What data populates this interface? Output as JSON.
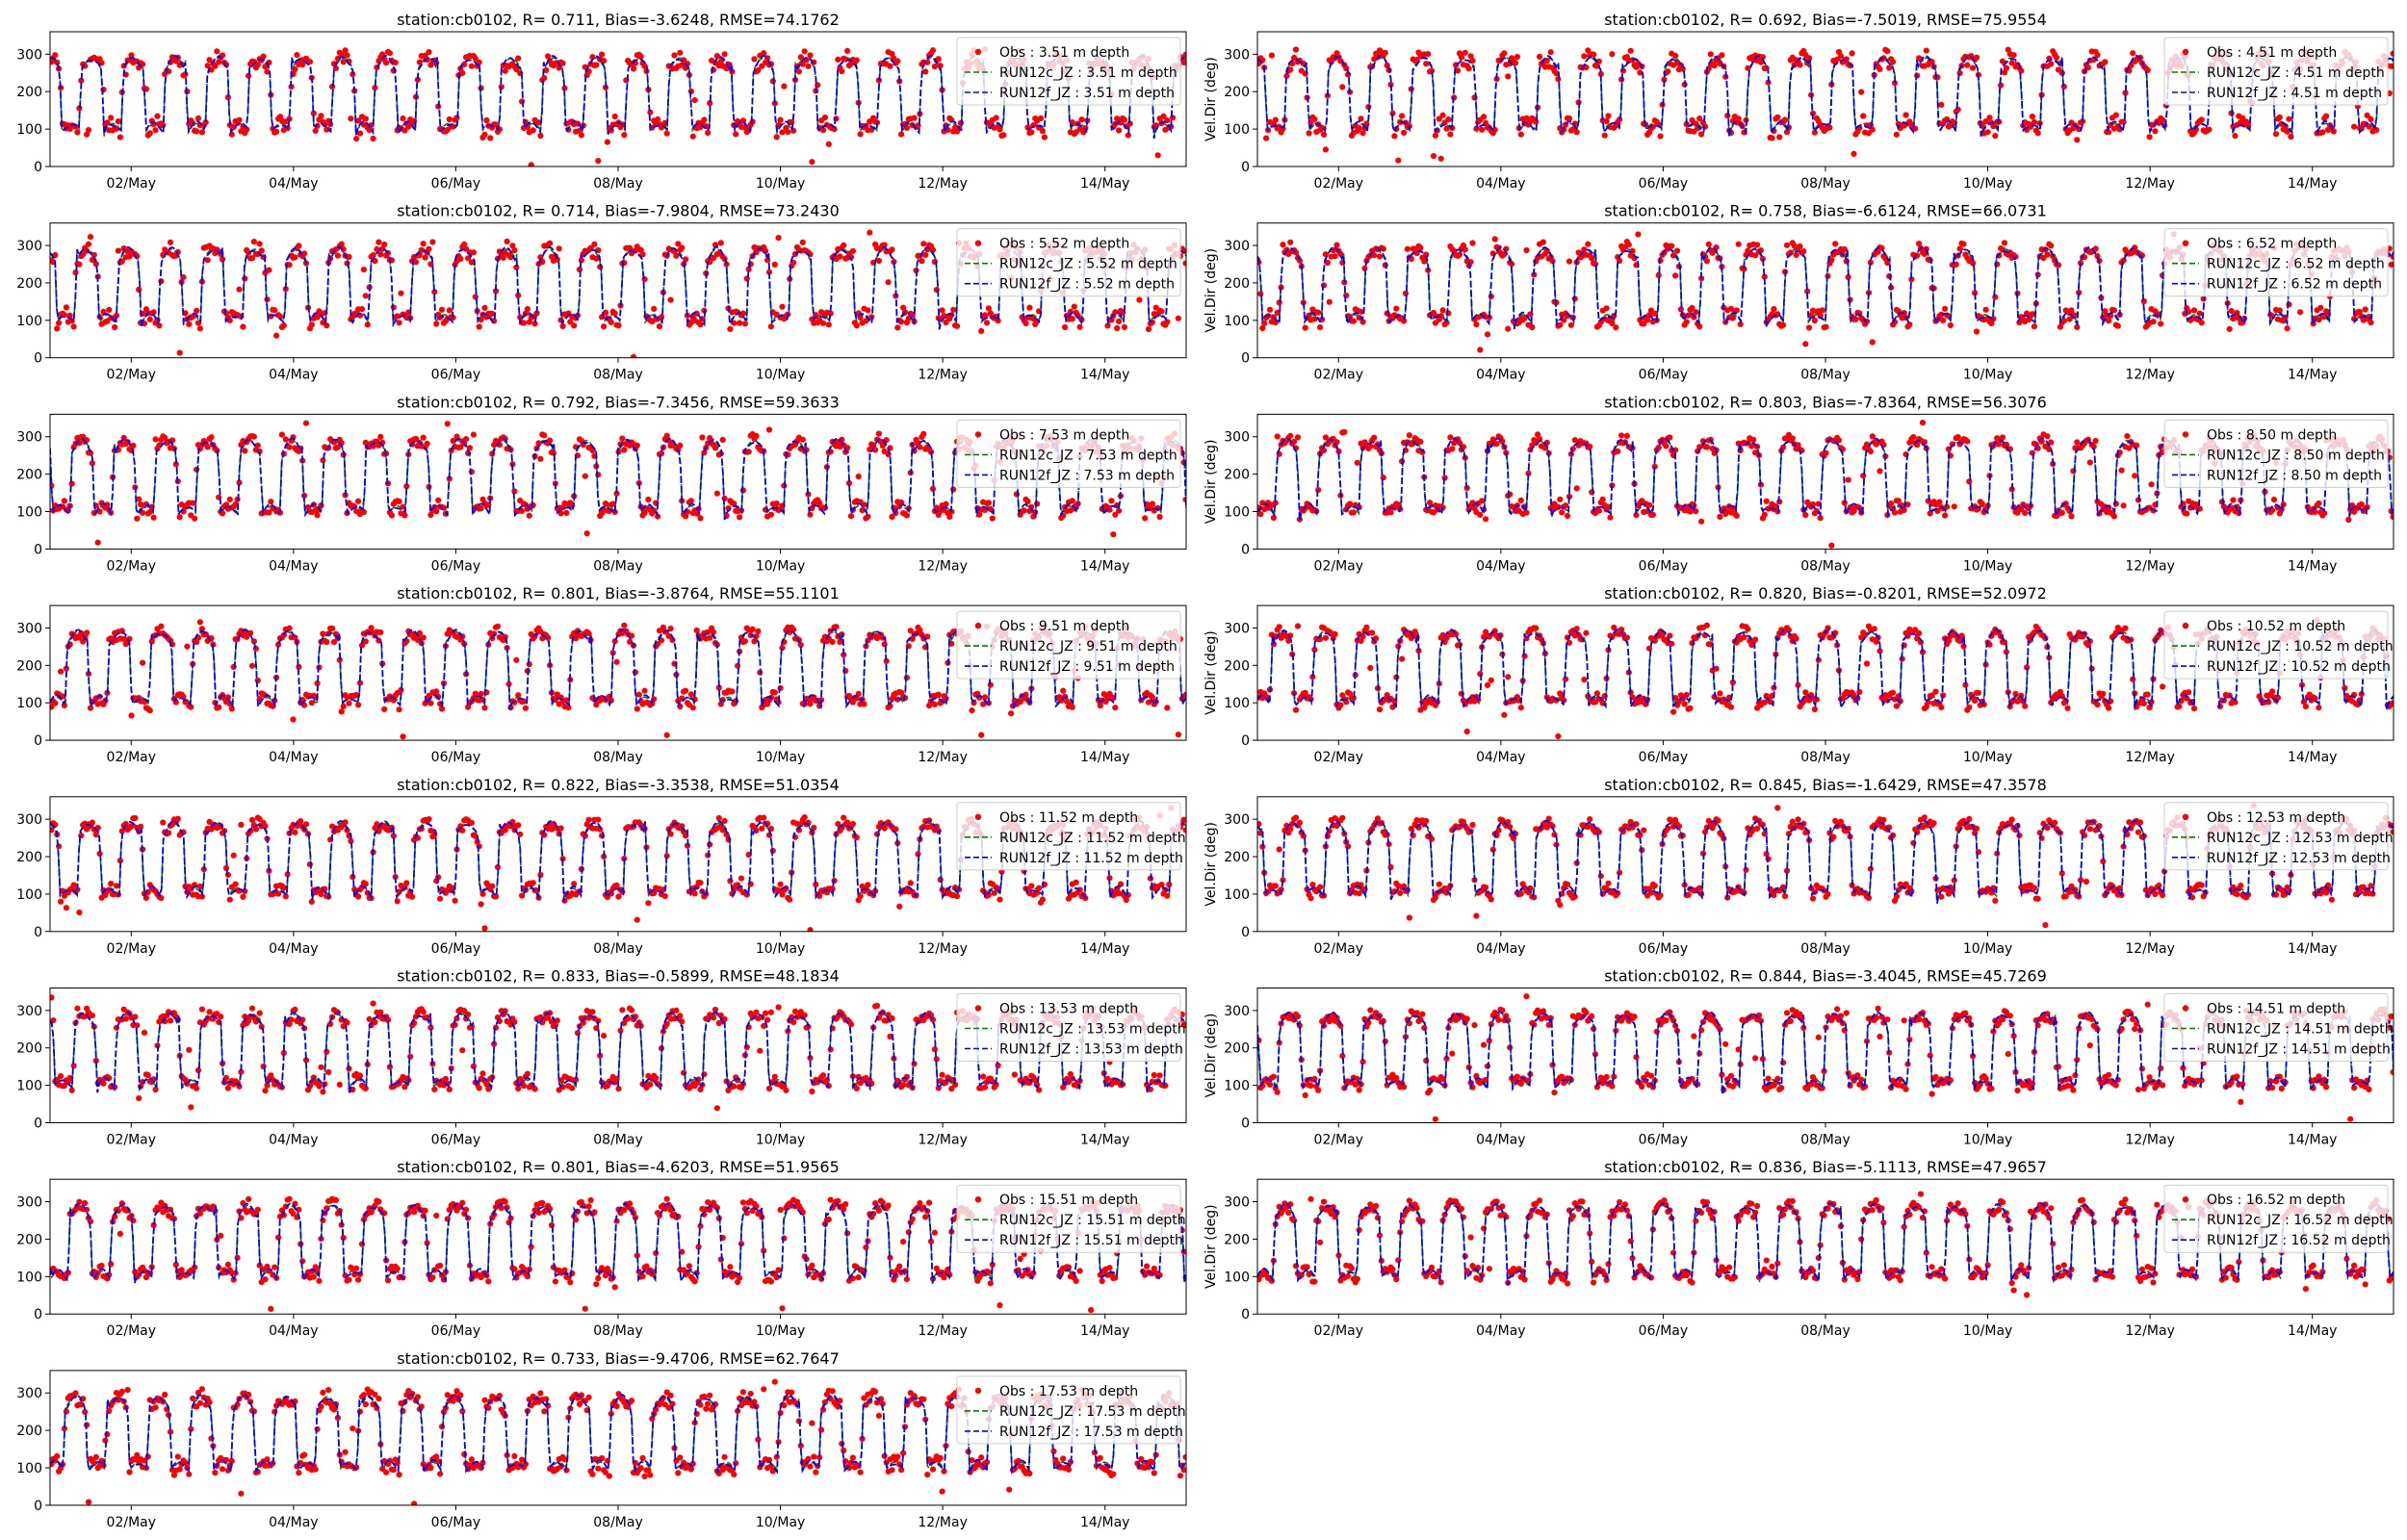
{
  "station": "station:cb0102",
  "colors": {
    "obs": "#ff0000",
    "run12c": "#008000",
    "run12f": "#0000ff"
  },
  "y_axis_label": "Vel.Dir (deg)",
  "x_tick_labels": [
    "02/May",
    "04/May",
    "06/May",
    "08/May",
    "10/May",
    "12/May",
    "14/May"
  ],
  "y_tick_labels": [
    "0",
    "100",
    "200",
    "300"
  ],
  "chart_data": [
    {
      "type": "scatter+line",
      "title": "station:cb0102, R= 0.711, Bias=-3.6248, RMSE=74.1762",
      "depth": "3.51",
      "R": 0.711,
      "Bias": -3.6248,
      "RMSE": 74.1762,
      "ylabel": "",
      "legend": [
        "Obs : 3.51 m depth",
        "RUN12c_JZ : 3.51 m depth",
        "RUN12f_JZ : 3.51 m depth"
      ],
      "xlim": [
        "2016-05-01",
        "2016-05-15"
      ],
      "ylim": [
        0,
        360
      ]
    },
    {
      "type": "scatter+line",
      "title": "station:cb0102, R= 0.692, Bias=-7.5019, RMSE=75.9554",
      "depth": "4.51",
      "R": 0.692,
      "Bias": -7.5019,
      "RMSE": 75.9554,
      "ylabel": "Vel.Dir (deg)",
      "legend": [
        "Obs : 4.51 m depth",
        "RUN12c_JZ : 4.51 m depth",
        "RUN12f_JZ : 4.51 m depth"
      ],
      "xlim": [
        "2016-05-01",
        "2016-05-15"
      ],
      "ylim": [
        0,
        360
      ]
    },
    {
      "type": "scatter+line",
      "title": "station:cb0102, R= 0.714, Bias=-7.9804, RMSE=73.2430",
      "depth": "5.52",
      "R": 0.714,
      "Bias": -7.9804,
      "RMSE": 73.243,
      "ylabel": "",
      "legend": [
        "Obs : 5.52 m depth",
        "RUN12c_JZ : 5.52 m depth",
        "RUN12f_JZ : 5.52 m depth"
      ],
      "xlim": [
        "2016-05-01",
        "2016-05-15"
      ],
      "ylim": [
        0,
        360
      ]
    },
    {
      "type": "scatter+line",
      "title": "station:cb0102, R= 0.758, Bias=-6.6124, RMSE=66.0731",
      "depth": "6.52",
      "R": 0.758,
      "Bias": -6.6124,
      "RMSE": 66.0731,
      "ylabel": "Vel.Dir (deg)",
      "legend": [
        "Obs : 6.52 m depth",
        "RUN12c_JZ : 6.52 m depth",
        "RUN12f_JZ : 6.52 m depth"
      ],
      "xlim": [
        "2016-05-01",
        "2016-05-15"
      ],
      "ylim": [
        0,
        360
      ]
    },
    {
      "type": "scatter+line",
      "title": "station:cb0102, R= 0.792, Bias=-7.3456, RMSE=59.3633",
      "depth": "7.53",
      "R": 0.792,
      "Bias": -7.3456,
      "RMSE": 59.3633,
      "ylabel": "",
      "legend": [
        "Obs : 7.53 m depth",
        "RUN12c_JZ : 7.53 m depth",
        "RUN12f_JZ : 7.53 m depth"
      ],
      "xlim": [
        "2016-05-01",
        "2016-05-15"
      ],
      "ylim": [
        0,
        360
      ]
    },
    {
      "type": "scatter+line",
      "title": "station:cb0102, R= 0.803, Bias=-7.8364, RMSE=56.3076",
      "depth": "8.50",
      "R": 0.803,
      "Bias": -7.8364,
      "RMSE": 56.3076,
      "ylabel": "Vel.Dir (deg)",
      "legend": [
        "Obs : 8.50 m depth",
        "RUN12c_JZ : 8.50 m depth",
        "RUN12f_JZ : 8.50 m depth"
      ],
      "xlim": [
        "2016-05-01",
        "2016-05-15"
      ],
      "ylim": [
        0,
        360
      ]
    },
    {
      "type": "scatter+line",
      "title": "station:cb0102, R= 0.801, Bias=-3.8764, RMSE=55.1101",
      "depth": "9.51",
      "R": 0.801,
      "Bias": -3.8764,
      "RMSE": 55.1101,
      "ylabel": "",
      "legend": [
        "Obs : 9.51 m depth",
        "RUN12c_JZ : 9.51 m depth",
        "RUN12f_JZ : 9.51 m depth"
      ],
      "xlim": [
        "2016-05-01",
        "2016-05-15"
      ],
      "ylim": [
        0,
        360
      ]
    },
    {
      "type": "scatter+line",
      "title": "station:cb0102, R= 0.820, Bias=-0.8201, RMSE=52.0972",
      "depth": "10.52",
      "R": 0.82,
      "Bias": -0.8201,
      "RMSE": 52.0972,
      "ylabel": "Vel.Dir (deg)",
      "legend": [
        "Obs : 10.52 m depth",
        "RUN12c_JZ : 10.52 m depth",
        "RUN12f_JZ : 10.52 m depth"
      ],
      "xlim": [
        "2016-05-01",
        "2016-05-15"
      ],
      "ylim": [
        0,
        360
      ]
    },
    {
      "type": "scatter+line",
      "title": "station:cb0102, R= 0.822, Bias=-3.3538, RMSE=51.0354",
      "depth": "11.52",
      "R": 0.822,
      "Bias": -3.3538,
      "RMSE": 51.0354,
      "ylabel": "",
      "legend": [
        "Obs : 11.52 m depth",
        "RUN12c_JZ : 11.52 m depth",
        "RUN12f_JZ : 11.52 m depth"
      ],
      "xlim": [
        "2016-05-01",
        "2016-05-15"
      ],
      "ylim": [
        0,
        360
      ]
    },
    {
      "type": "scatter+line",
      "title": "station:cb0102, R= 0.845, Bias=-1.6429, RMSE=47.3578",
      "depth": "12.53",
      "R": 0.845,
      "Bias": -1.6429,
      "RMSE": 47.3578,
      "ylabel": "Vel.Dir (deg)",
      "legend": [
        "Obs : 12.53 m depth",
        "RUN12c_JZ : 12.53 m depth",
        "RUN12f_JZ : 12.53 m depth"
      ],
      "xlim": [
        "2016-05-01",
        "2016-05-15"
      ],
      "ylim": [
        0,
        360
      ]
    },
    {
      "type": "scatter+line",
      "title": "station:cb0102, R= 0.833, Bias=-0.5899, RMSE=48.1834",
      "depth": "13.53",
      "R": 0.833,
      "Bias": -0.5899,
      "RMSE": 48.1834,
      "ylabel": "",
      "legend": [
        "Obs : 13.53 m depth",
        "RUN12c_JZ : 13.53 m depth",
        "RUN12f_JZ : 13.53 m depth"
      ],
      "xlim": [
        "2016-05-01",
        "2016-05-15"
      ],
      "ylim": [
        0,
        360
      ]
    },
    {
      "type": "scatter+line",
      "title": "station:cb0102, R= 0.844, Bias=-3.4045, RMSE=45.7269",
      "depth": "14.51",
      "R": 0.844,
      "Bias": -3.4045,
      "RMSE": 45.7269,
      "ylabel": "Vel.Dir (deg)",
      "legend": [
        "Obs : 14.51 m depth",
        "RUN12c_JZ : 14.51 m depth",
        "RUN12f_JZ : 14.51 m depth"
      ],
      "xlim": [
        "2016-05-01",
        "2016-05-15"
      ],
      "ylim": [
        0,
        360
      ]
    },
    {
      "type": "scatter+line",
      "title": "station:cb0102, R= 0.801, Bias=-4.6203, RMSE=51.9565",
      "depth": "15.51",
      "R": 0.801,
      "Bias": -4.6203,
      "RMSE": 51.9565,
      "ylabel": "",
      "legend": [
        "Obs : 15.51 m depth",
        "RUN12c_JZ : 15.51 m depth",
        "RUN12f_JZ : 15.51 m depth"
      ],
      "xlim": [
        "2016-05-01",
        "2016-05-15"
      ],
      "ylim": [
        0,
        360
      ]
    },
    {
      "type": "scatter+line",
      "title": "station:cb0102, R= 0.836, Bias=-5.1113, RMSE=47.9657",
      "depth": "16.52",
      "R": 0.836,
      "Bias": -5.1113,
      "RMSE": 47.9657,
      "ylabel": "Vel.Dir (deg)",
      "legend": [
        "Obs : 16.52 m depth",
        "RUN12c_JZ : 16.52 m depth",
        "RUN12f_JZ : 16.52 m depth"
      ],
      "xlim": [
        "2016-05-01",
        "2016-05-15"
      ],
      "ylim": [
        0,
        360
      ]
    },
    {
      "type": "scatter+line",
      "title": "station:cb0102, R= 0.733, Bias=-9.4706, RMSE=62.7647",
      "depth": "17.53",
      "R": 0.733,
      "Bias": -9.4706,
      "RMSE": 62.7647,
      "ylabel": "",
      "legend": [
        "Obs : 17.53 m depth",
        "RUN12c_JZ : 17.53 m depth",
        "RUN12f_JZ : 17.53 m depth"
      ],
      "xlim": [
        "2016-05-01",
        "2016-05-15"
      ],
      "ylim": [
        0,
        360
      ]
    }
  ]
}
